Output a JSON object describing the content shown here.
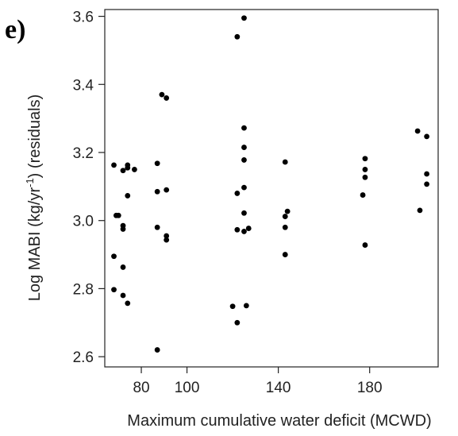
{
  "panel_label": "e)",
  "chart_data": {
    "type": "scatter",
    "title": "",
    "xlabel": "Maximum cumulative water deficit (MCWD)",
    "ylabel_main": "Log MABI (kg/yr",
    "ylabel_sup": "-1",
    "ylabel_rest": ") (residuals)",
    "xlim": [
      64,
      210
    ],
    "ylim": [
      2.57,
      3.62
    ],
    "xticks": [
      80,
      100,
      140,
      180
    ],
    "xtick_labels": [
      "80",
      "100",
      "140",
      "180"
    ],
    "yticks": [
      2.6,
      2.8,
      3.0,
      3.2,
      3.4,
      3.6
    ],
    "ytick_labels": [
      "2.6",
      "2.8",
      "3.0",
      "3.2",
      "3.4",
      "3.6"
    ],
    "grid": false,
    "point_color": "#000000",
    "points": [
      {
        "x": 68,
        "y": 3.163
      },
      {
        "x": 69,
        "y": 3.015
      },
      {
        "x": 70,
        "y": 3.015
      },
      {
        "x": 68,
        "y": 2.895
      },
      {
        "x": 68,
        "y": 2.797
      },
      {
        "x": 72,
        "y": 3.147
      },
      {
        "x": 72,
        "y": 2.985
      },
      {
        "x": 72,
        "y": 2.975
      },
      {
        "x": 72,
        "y": 2.863
      },
      {
        "x": 72,
        "y": 2.78
      },
      {
        "x": 74,
        "y": 3.163
      },
      {
        "x": 74,
        "y": 3.155
      },
      {
        "x": 74,
        "y": 3.073
      },
      {
        "x": 74,
        "y": 2.757
      },
      {
        "x": 77,
        "y": 3.15
      },
      {
        "x": 87,
        "y": 3.168
      },
      {
        "x": 87,
        "y": 3.085
      },
      {
        "x": 87,
        "y": 2.98
      },
      {
        "x": 87,
        "y": 2.62
      },
      {
        "x": 89,
        "y": 3.37
      },
      {
        "x": 91,
        "y": 3.36
      },
      {
        "x": 91,
        "y": 3.09
      },
      {
        "x": 91,
        "y": 2.955
      },
      {
        "x": 91,
        "y": 2.943
      },
      {
        "x": 120,
        "y": 2.748
      },
      {
        "x": 122,
        "y": 3.54
      },
      {
        "x": 122,
        "y": 3.08
      },
      {
        "x": 122,
        "y": 2.973
      },
      {
        "x": 122,
        "y": 2.7
      },
      {
        "x": 125,
        "y": 3.595
      },
      {
        "x": 125,
        "y": 3.272
      },
      {
        "x": 125,
        "y": 3.215
      },
      {
        "x": 125,
        "y": 3.178
      },
      {
        "x": 125,
        "y": 3.097
      },
      {
        "x": 125,
        "y": 3.022
      },
      {
        "x": 125,
        "y": 2.968
      },
      {
        "x": 126,
        "y": 2.75
      },
      {
        "x": 127,
        "y": 2.977
      },
      {
        "x": 143,
        "y": 3.172
      },
      {
        "x": 144,
        "y": 3.027
      },
      {
        "x": 143,
        "y": 3.012
      },
      {
        "x": 143,
        "y": 2.98
      },
      {
        "x": 143,
        "y": 2.9
      },
      {
        "x": 178,
        "y": 3.182
      },
      {
        "x": 178,
        "y": 3.15
      },
      {
        "x": 178,
        "y": 3.127
      },
      {
        "x": 177,
        "y": 3.075
      },
      {
        "x": 178,
        "y": 2.928
      },
      {
        "x": 201,
        "y": 3.263
      },
      {
        "x": 202,
        "y": 3.03
      },
      {
        "x": 205,
        "y": 3.247
      },
      {
        "x": 205,
        "y": 3.137
      },
      {
        "x": 205,
        "y": 3.107
      }
    ]
  }
}
